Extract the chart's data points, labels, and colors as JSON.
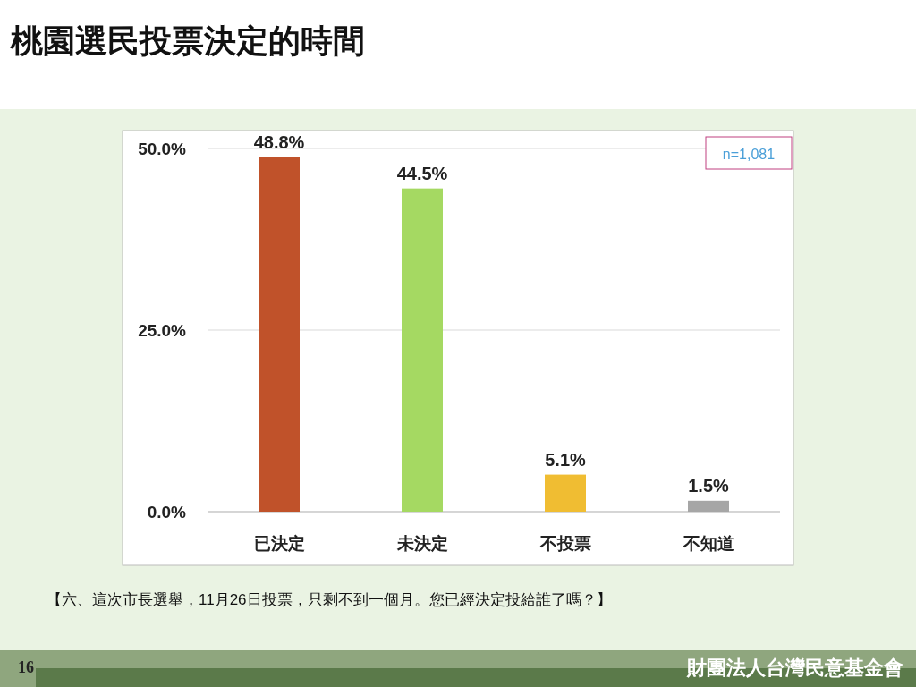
{
  "chart_data": {
    "type": "bar",
    "title": "桃園選民投票決定的時間",
    "categories": [
      "已決定",
      "未決定",
      "不投票",
      "不知道"
    ],
    "values": [
      48.8,
      44.5,
      5.1,
      1.5
    ],
    "colors": [
      "#c0522a",
      "#a5d962",
      "#f0bd32",
      "#a6a6a6"
    ],
    "value_labels": [
      "48.8%",
      "44.5%",
      "5.1%",
      "1.5%"
    ],
    "ylim": [
      0,
      50
    ],
    "yticks": [
      {
        "value": 0,
        "label": "0.0%"
      },
      {
        "value": 25,
        "label": "25.0%"
      },
      {
        "value": 50,
        "label": "50.0%"
      }
    ],
    "grid": "y",
    "annotations": [
      "n=1,081",
      "【六、這次市長選舉，11月26日投票，只剩不到一個月。您已經決定投給誰了嗎？】",
      "16",
      "財團法人台灣民意基金會"
    ]
  }
}
